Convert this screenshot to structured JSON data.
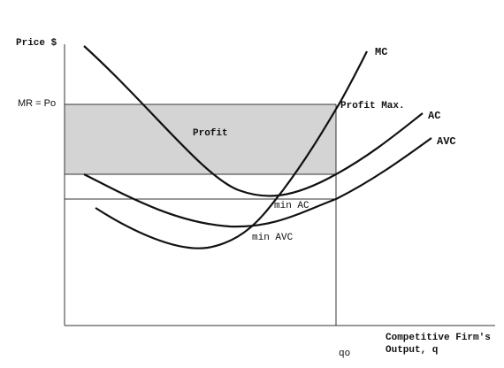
{
  "axes": {
    "y_label": "Price $",
    "x_label_line1": "Competitive Firm's",
    "x_label_line2": "Output, q",
    "price_label": "MR = Po",
    "quantity_label": "qo"
  },
  "curves": {
    "mc": "MC",
    "ac": "AC",
    "avc": "AVC"
  },
  "annotations": {
    "profit": "Profit",
    "profit_max": "Profit Max.",
    "min_ac": "min AC",
    "min_avc": "min AVC"
  }
}
